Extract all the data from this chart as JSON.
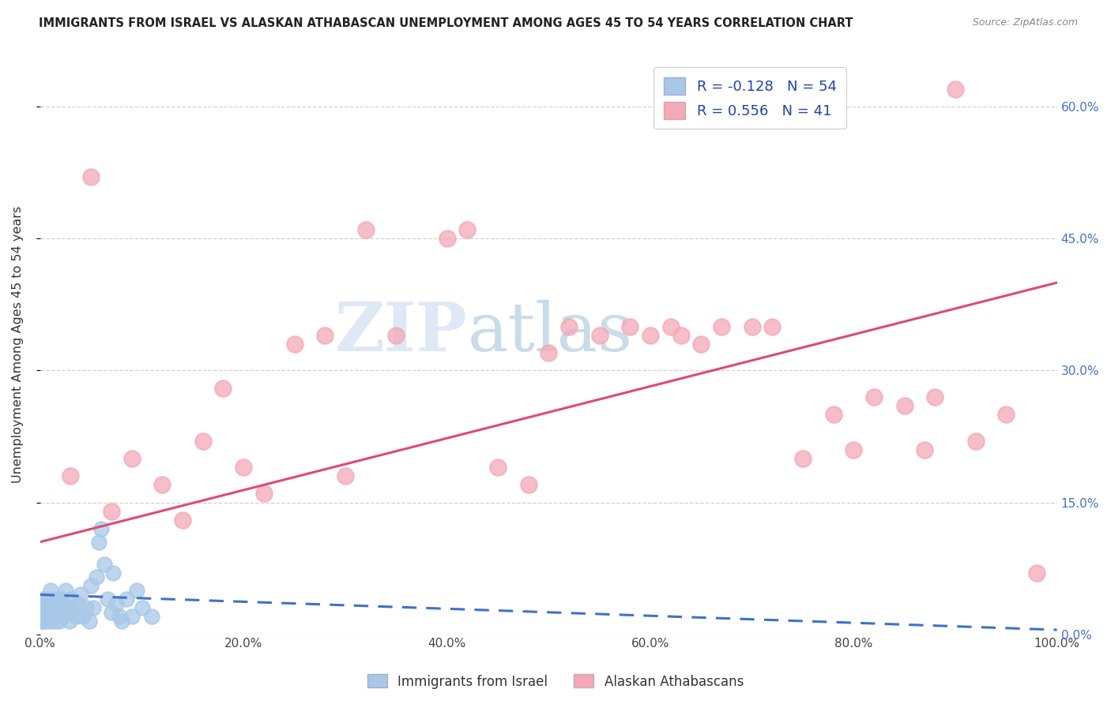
{
  "title": "IMMIGRANTS FROM ISRAEL VS ALASKAN ATHABASCAN UNEMPLOYMENT AMONG AGES 45 TO 54 YEARS CORRELATION CHART",
  "source": "Source: ZipAtlas.com",
  "ylabel": "Unemployment Among Ages 45 to 54 years",
  "legend_bottom": [
    "Immigrants from Israel",
    "Alaskan Athabascans"
  ],
  "R_israel": -0.128,
  "N_israel": 54,
  "R_athabascan": 0.556,
  "N_athabascan": 41,
  "xlim": [
    0,
    100
  ],
  "ylim": [
    0,
    66
  ],
  "yticks": [
    0,
    15,
    30,
    45,
    60
  ],
  "ytick_labels": [
    "0.0%",
    "15.0%",
    "30.0%",
    "45.0%",
    "60.0%"
  ],
  "xticks": [
    0,
    20,
    40,
    60,
    80,
    100
  ],
  "xtick_labels": [
    "0.0%",
    "20.0%",
    "40.0%",
    "60.0%",
    "80.0%",
    "100.0%"
  ],
  "israel_x": [
    0.1,
    0.15,
    0.2,
    0.25,
    0.3,
    0.35,
    0.4,
    0.5,
    0.6,
    0.7,
    0.8,
    0.9,
    1.0,
    1.1,
    1.2,
    1.3,
    1.4,
    1.5,
    1.6,
    1.7,
    1.8,
    1.9,
    2.0,
    2.1,
    2.2,
    2.3,
    2.5,
    2.7,
    2.9,
    3.0,
    3.2,
    3.5,
    3.7,
    4.0,
    4.2,
    4.5,
    4.8,
    5.0,
    5.2,
    5.5,
    5.8,
    6.0,
    6.3,
    6.6,
    7.0,
    7.2,
    7.5,
    7.8,
    8.0,
    8.5,
    9.0,
    9.5,
    10.0,
    11.0
  ],
  "israel_y": [
    2.5,
    1.5,
    3.0,
    2.0,
    4.0,
    1.5,
    3.0,
    2.5,
    1.5,
    4.0,
    3.5,
    2.0,
    5.0,
    1.5,
    3.0,
    2.5,
    4.0,
    1.5,
    2.0,
    3.5,
    2.5,
    1.5,
    3.0,
    4.0,
    2.0,
    3.5,
    5.0,
    2.5,
    1.5,
    4.0,
    3.0,
    2.0,
    3.5,
    4.5,
    2.0,
    3.0,
    1.5,
    5.5,
    3.0,
    6.5,
    10.5,
    12.0,
    8.0,
    4.0,
    2.5,
    7.0,
    3.5,
    2.0,
    1.5,
    4.0,
    2.0,
    5.0,
    3.0,
    2.0
  ],
  "athabascan_x": [
    3.0,
    5.0,
    7.0,
    9.0,
    12.0,
    14.0,
    16.0,
    18.0,
    20.0,
    22.0,
    25.0,
    28.0,
    30.0,
    32.0,
    35.0,
    40.0,
    42.0,
    45.0,
    48.0,
    50.0,
    52.0,
    55.0,
    58.0,
    60.0,
    62.0,
    63.0,
    65.0,
    67.0,
    70.0,
    72.0,
    75.0,
    78.0,
    80.0,
    82.0,
    85.0,
    87.0,
    88.0,
    90.0,
    92.0,
    95.0,
    98.0
  ],
  "athabascan_y": [
    18.0,
    52.0,
    14.0,
    20.0,
    17.0,
    13.0,
    22.0,
    28.0,
    19.0,
    16.0,
    33.0,
    34.0,
    18.0,
    46.0,
    34.0,
    45.0,
    46.0,
    19.0,
    17.0,
    32.0,
    35.0,
    34.0,
    35.0,
    34.0,
    35.0,
    34.0,
    33.0,
    35.0,
    35.0,
    35.0,
    20.0,
    25.0,
    21.0,
    27.0,
    26.0,
    21.0,
    27.0,
    62.0,
    22.0,
    25.0,
    7.0
  ],
  "color_israel": "#a8c8e8",
  "color_athabascan": "#f4a8b8",
  "line_israel": "#4070c8",
  "line_athabascan": "#e04878",
  "watermark_zip": "ZIP",
  "watermark_atlas": "atlas",
  "background_color": "#ffffff",
  "grid_color": "#cccccc",
  "pink_line_x0": 0,
  "pink_line_y0": 10.5,
  "pink_line_x1": 100,
  "pink_line_y1": 40.0,
  "blue_line_x0": 0,
  "blue_line_y0": 4.5,
  "blue_line_x1": 100,
  "blue_line_y1": 0.5
}
